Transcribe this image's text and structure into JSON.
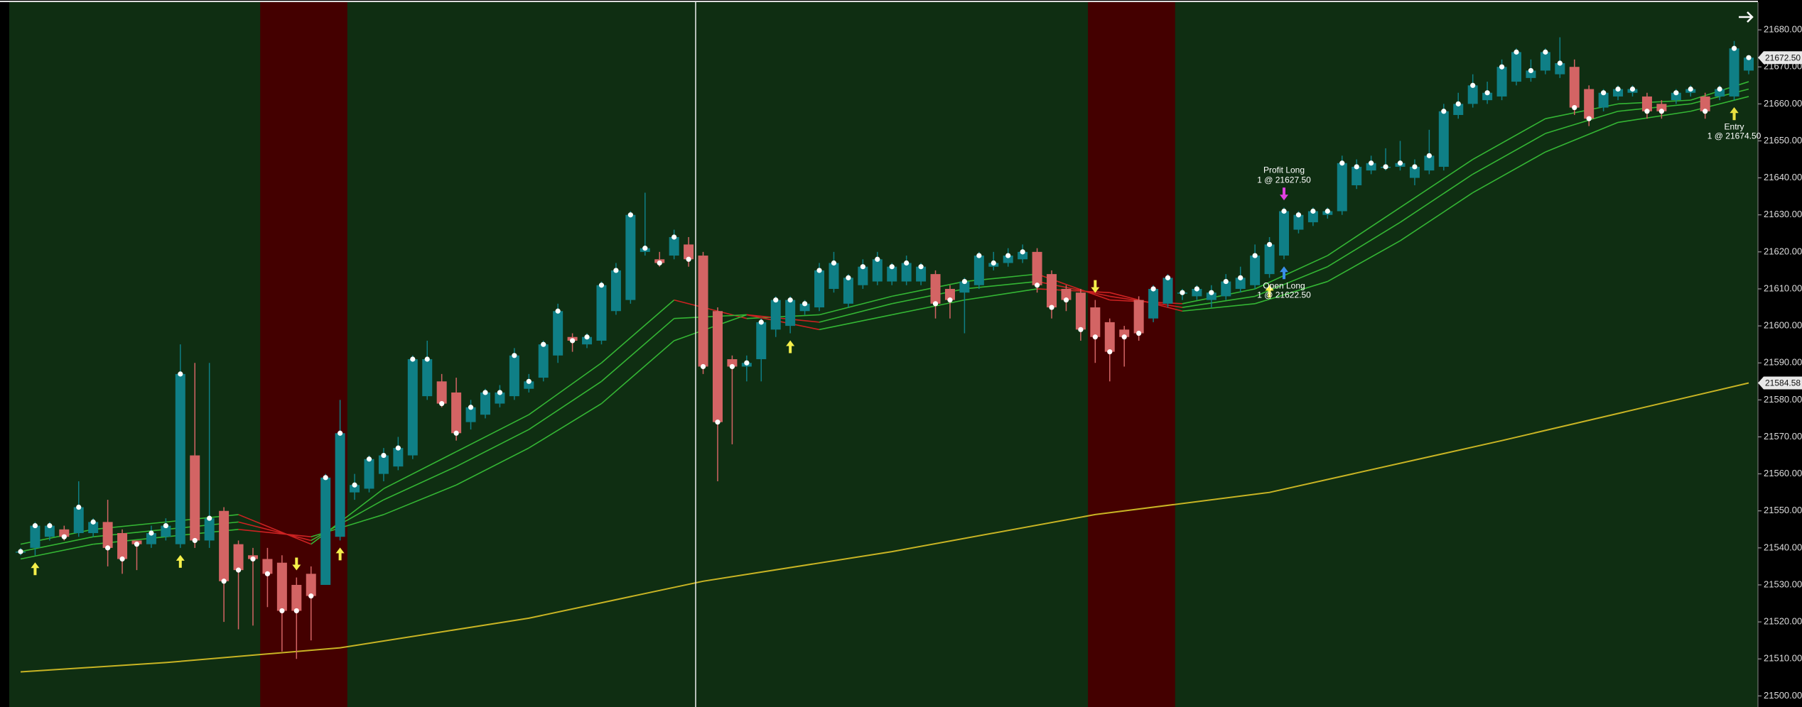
{
  "chart_data": {
    "type": "candlestick",
    "open": [
      21539,
      21540,
      21543,
      21545,
      21544,
      21544,
      21547,
      21544,
      21542,
      21541,
      21543,
      21541,
      21565,
      21542,
      21550,
      21541,
      21538,
      21537,
      21536,
      21530,
      21533,
      21530,
      21543,
      21555,
      21556,
      21560,
      21562,
      21565,
      21581,
      21585,
      21582,
      21574,
      21576,
      21579,
      21581,
      21583,
      21586,
      21592,
      21597,
      21595,
      21596,
      21604,
      21607,
      21620,
      21618,
      21619,
      21622,
      21619,
      21604,
      21591,
      21589,
      21591,
      21599,
      21600,
      21604,
      21605,
      21610,
      21606,
      21611,
      21612,
      21612,
      21612,
      21612,
      21614,
      21610,
      21609,
      21611,
      21616,
      21617,
      21618,
      21620,
      21614,
      21610,
      21609,
      21605,
      21601,
      21599,
      21607,
      21602,
      21606,
      21609,
      21608,
      21607,
      21608,
      21610,
      21611,
      21614,
      21619,
      21626,
      21628,
      21630,
      21631,
      21638,
      21642,
      21643,
      21643,
      21640,
      21642,
      21643,
      21657,
      21660,
      21661,
      21662,
      21666,
      21667,
      21669,
      21668,
      21670,
      21664,
      21659,
      21662,
      21663,
      21662,
      21660,
      21661,
      21663,
      21662,
      21662,
      21662,
      21669
    ],
    "high": [
      21540,
      21547,
      21547,
      21546,
      21558,
      21548,
      21553,
      21545,
      21542,
      21546,
      21548,
      21595,
      21590,
      21590,
      21551,
      21542,
      21540,
      21540,
      21538,
      21532,
      21535,
      21560,
      21580,
      21560,
      21565,
      21567,
      21570,
      21592,
      21596,
      21587,
      21586,
      21580,
      21583,
      21584,
      21594,
      21587,
      21596,
      21606,
      21598,
      21598,
      21612,
      21617,
      21631,
      21636,
      21620,
      21626,
      21624,
      21620,
      21605,
      21592,
      21592,
      21602,
      21608,
      21608,
      21607,
      21617,
      21620,
      21614,
      21618,
      21620,
      21617,
      21619,
      21617,
      21615,
      21611,
      21613,
      21620,
      21620,
      21621,
      21622,
      21621,
      21615,
      21611,
      21610,
      21607,
      21602,
      21600,
      21608,
      21611,
      21614,
      21610,
      21611,
      21611,
      21614,
      21616,
      21622,
      21624,
      21632,
      21631,
      21632,
      21632,
      21646,
      21645,
      21646,
      21648,
      21650,
      21645,
      21653,
      21660,
      21663,
      21668,
      21666,
      21672,
      21675,
      21672,
      21675,
      21678,
      21672,
      21665,
      21664,
      21665,
      21665,
      21663,
      21661,
      21664,
      21665,
      21663,
      21665,
      21677,
      21673
    ],
    "low": [
      21538,
      21538,
      21542,
      21542,
      21543,
      21543,
      21535,
      21533,
      21534,
      21540,
      21542,
      21540,
      21540,
      21540,
      21520,
      21518,
      21519,
      21524,
      21512,
      21510,
      21515,
      21530,
      21542,
      21553,
      21555,
      21558,
      21561,
      21564,
      21580,
      21578,
      21569,
      21572,
      21575,
      21578,
      21580,
      21582,
      21585,
      21590,
      21593,
      21594,
      21595,
      21603,
      21606,
      21619,
      21616,
      21618,
      21616,
      21587,
      21558,
      21568,
      21585,
      21585,
      21597,
      21598,
      21603,
      21604,
      21609,
      21605,
      21610,
      21611,
      21611,
      21611,
      21611,
      21602,
      21602,
      21598,
      21610,
      21615,
      21616,
      21617,
      21609,
      21602,
      21604,
      21596,
      21590,
      21585,
      21589,
      21596,
      21601,
      21605,
      21607,
      21607,
      21605,
      21607,
      21609,
      21610,
      21613,
      21618,
      21625,
      21627,
      21629,
      21630,
      21637,
      21641,
      21642,
      21642,
      21638,
      21641,
      21642,
      21656,
      21659,
      21660,
      21661,
      21665,
      21666,
      21668,
      21667,
      21657,
      21654,
      21658,
      21661,
      21662,
      21656,
      21656,
      21660,
      21662,
      21656,
      21661,
      21661,
      21668
    ],
    "close": [
      21539,
      21546,
      21546,
      21543,
      21551,
      21547,
      21540,
      21537,
      21541,
      21544,
      21546,
      21587,
      21542,
      21548,
      21531,
      21534,
      21537,
      21533,
      21523,
      21523,
      21527,
      21559,
      21571,
      21557,
      21564,
      21565,
      21567,
      21591,
      21591,
      21579,
      21571,
      21578,
      21582,
      21582,
      21592,
      21585,
      21595,
      21604,
      21596,
      21597,
      21611,
      21615,
      21630,
      21621,
      21617,
      21624,
      21618,
      21589,
      21574,
      21589,
      21590,
      21601,
      21607,
      21607,
      21606,
      21615,
      21617,
      21613,
      21616,
      21618,
      21616,
      21617,
      21616,
      21606,
      21607,
      21612,
      21619,
      21617,
      21619,
      21620,
      21611,
      21605,
      21607,
      21599,
      21597,
      21593,
      21597,
      21598,
      21610,
      21613,
      21609,
      21610,
      21609,
      21612,
      21613,
      21619,
      21622,
      21631,
      21630,
      21631,
      21631,
      21644,
      21643,
      21644,
      21643,
      21644,
      21643,
      21646,
      21658,
      21660,
      21665,
      21663,
      21670,
      21674,
      21669,
      21674,
      21671,
      21659,
      21656,
      21663,
      21664,
      21664,
      21658,
      21658,
      21663,
      21664,
      21658,
      21664,
      21675,
      21672.5
    ],
    "up_color": "#0f7f86",
    "down_color": "#d36464",
    "background": "#0f2e12",
    "regions": [
      {
        "start": 17,
        "end": 22,
        "color": "#440000"
      },
      {
        "start": 74,
        "end": 79,
        "color": "#440000"
      }
    ],
    "ribbon": {
      "up_color": "#34b634",
      "down_color": "#cc2222",
      "x": [
        0,
        5,
        10,
        15,
        20,
        25,
        30,
        35,
        40,
        45,
        50,
        55,
        60,
        65,
        70,
        75,
        80,
        85,
        90,
        95,
        100,
        105,
        110,
        115,
        119
      ],
      "lines": [
        [
          21541,
          21545,
          21547,
          21549,
          21541,
          21556,
          21566,
          21576,
          21590,
          21607,
          21602,
          21603,
          21608,
          21612,
          21614,
          21607,
          21606,
          21610,
          21619,
          21632,
          21645,
          21656,
          21660,
          21661,
          21666
        ],
        [
          21539,
          21543,
          21545,
          21547,
          21542,
          21553,
          21562,
          21572,
          21585,
          21602,
          21603,
          21601,
          21606,
          21610,
          21612,
          21608,
          21605,
          21608,
          21616,
          21628,
          21641,
          21652,
          21658,
          21660,
          21664
        ],
        [
          21537,
          21541,
          21543,
          21545,
          21543,
          21549,
          21557,
          21567,
          21579,
          21596,
          21603,
          21599,
          21603,
          21607,
          21610,
          21609,
          21604,
          21606,
          21612,
          21623,
          21636,
          21647,
          21655,
          21658,
          21662
        ]
      ]
    },
    "sma": {
      "color": "#c8b424",
      "x": [
        0,
        10,
        22,
        35,
        47,
        60,
        74,
        86,
        102,
        119
      ],
      "values": [
        21506.5,
        21509,
        21513,
        21521,
        21531,
        21539,
        21549,
        21555,
        21569,
        21584.58
      ]
    },
    "signals": [
      {
        "index": 1,
        "direction": "up"
      },
      {
        "index": 11,
        "direction": "up"
      },
      {
        "index": 22,
        "direction": "up"
      },
      {
        "index": 53,
        "direction": "up"
      },
      {
        "index": 86,
        "direction": "up"
      },
      {
        "index": 118,
        "direction": "up"
      },
      {
        "index": 19,
        "direction": "down"
      },
      {
        "index": 74,
        "direction": "down"
      }
    ],
    "trades": [
      {
        "index": 87,
        "side": "above",
        "color": "#e040e0",
        "label": "Profit Long",
        "detail": "1 @ 21627.50"
      },
      {
        "index": 87,
        "side": "below",
        "color": "#3a8ee8",
        "label": "Open Long",
        "detail": "1 @ 21622.50"
      },
      {
        "index": 118,
        "side": "below",
        "color": "#e8e040",
        "label": "Entry",
        "detail": "1 @ 21674.50"
      }
    ],
    "last_price": {
      "value": 21672.5,
      "label": "21672.50"
    },
    "sma_price": {
      "value": 21584.58,
      "label": "21584.58"
    },
    "ylim": [
      21497,
      21687.5
    ],
    "yticks": [
      {
        "value": 21500,
        "label": "21500.00"
      },
      {
        "value": 21510,
        "label": "21510.00"
      },
      {
        "value": 21520,
        "label": "21520.00"
      },
      {
        "value": 21530,
        "label": "21530.00"
      },
      {
        "value": 21540,
        "label": "21540.00"
      },
      {
        "value": 21550,
        "label": "21550.00"
      },
      {
        "value": 21560,
        "label": "21560.00"
      },
      {
        "value": 21570,
        "label": "21570.00"
      },
      {
        "value": 21580,
        "label": "21580.00"
      },
      {
        "value": 21590,
        "label": "21590.00"
      },
      {
        "value": 21600,
        "label": "21600.00"
      },
      {
        "value": 21610,
        "label": "21610.00"
      },
      {
        "value": 21620,
        "label": "21620.00"
      },
      {
        "value": 21630,
        "label": "21630.00"
      },
      {
        "value": 21640,
        "label": "21640.00"
      },
      {
        "value": 21650,
        "label": "21650.00"
      },
      {
        "value": 21660,
        "label": "21660.00"
      },
      {
        "value": 21670,
        "label": "21670.00"
      },
      {
        "value": 21680,
        "label": "21680.00"
      }
    ]
  }
}
